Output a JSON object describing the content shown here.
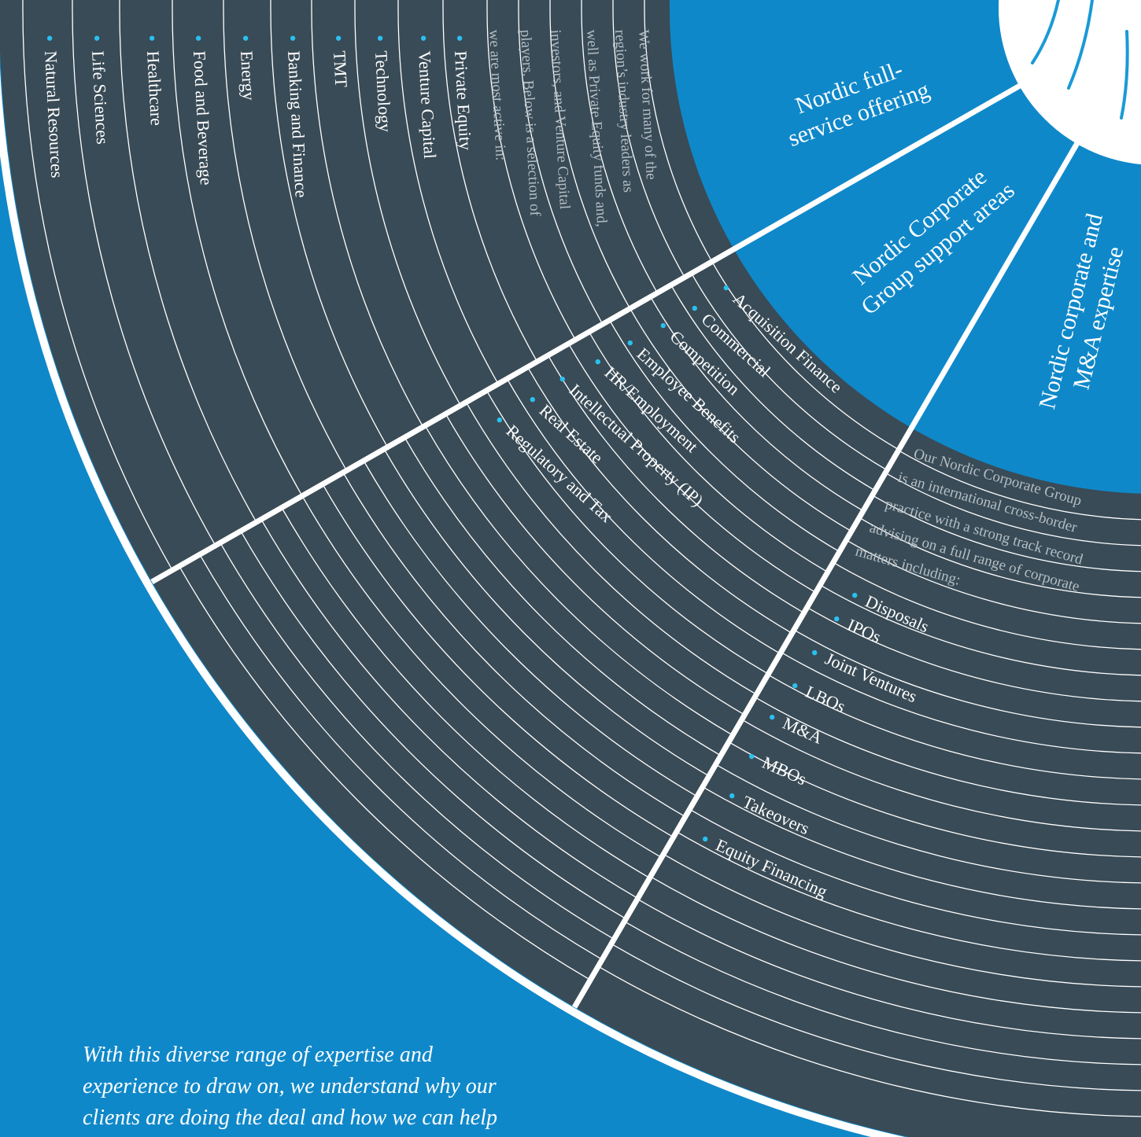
{
  "sections": {
    "offering": {
      "title": [
        "Nordic full-",
        "service offering"
      ]
    },
    "industries": {
      "intro": [
        "We work for many of the",
        "region’s industry leaders as",
        "well as Private Equity funds and,",
        "investors, and Venture Capital",
        "players. Below is a selection of",
        "we are most active in:"
      ],
      "items": [
        "Private Equity",
        "Venture Capital",
        "Technology",
        "TMT",
        "Banking and Finance",
        "Energy",
        "Food and Beverage",
        "Healthcare",
        "Life Sciences",
        "Natural Resources"
      ]
    },
    "support": {
      "title": [
        "Nordic Corporate",
        "Group support areas"
      ],
      "items": [
        "Acquisition Finance",
        "Commercial",
        "Competition",
        "Employee Benefits",
        "HR/Employment",
        "Intellectual Property (IP)",
        "Real Estate",
        "Regulatory and Tax"
      ]
    },
    "corporate": {
      "title": [
        "Nordic corporate and",
        "M&A expertise"
      ],
      "intro": [
        "Our Nordic Corporate Group",
        "is an international cross-border",
        "practice with a strong track record",
        "advising on a full range of corporate",
        "matters including:"
      ],
      "items": [
        "Disposals",
        "IPOs",
        "Joint Ventures",
        "LBOs",
        "M&A",
        "MBOs",
        "Takeovers",
        "Equity Financing"
      ]
    }
  },
  "footer": {
    "lines": [
      "With this diverse range of expertise and",
      "experience to draw on, we understand why our",
      "clients are doing the deal and how we can help"
    ]
  }
}
